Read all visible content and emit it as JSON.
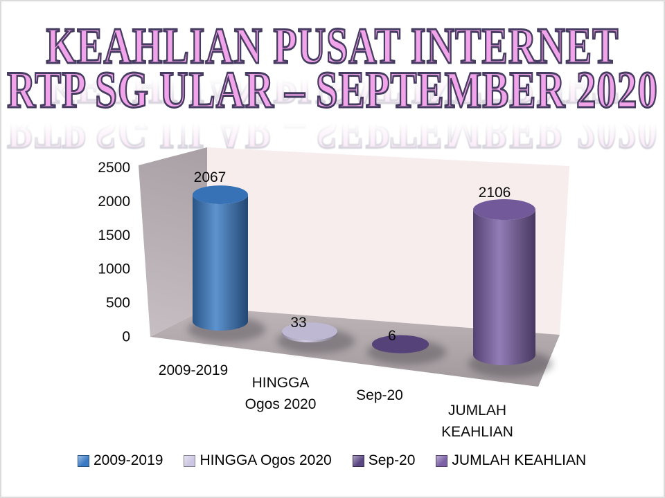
{
  "slide": {
    "title_line1": "KEAHLIAN PUSAT INTERNET",
    "title_line2": "RTP SG ULAR – SEPTEMBER 2020",
    "title_fill_color": "#f2a4ea",
    "title_outline_color": "#463b60"
  },
  "chart_data": {
    "type": "bar",
    "subtype": "3d-cylinder",
    "title": "",
    "xlabel": "",
    "ylabel": "",
    "categories": [
      "2009-2019",
      "HINGGA Ogos 2020",
      "Sep-20",
      "JUMLAH KEAHLIAN"
    ],
    "values": [
      2067,
      33,
      6,
      2106
    ],
    "data_labels": [
      "2067",
      "33",
      "6",
      "2106"
    ],
    "series_colors": [
      "#3b7bc4",
      "#cdc6e2",
      "#5b4781",
      "#7b60a6"
    ],
    "ylim": [
      0,
      2500
    ],
    "yticks": [
      0,
      500,
      1000,
      1500,
      2000,
      2500
    ],
    "grid": false,
    "legend_position": "bottom",
    "legend_entries": [
      "2009-2019",
      "HINGGA Ogos 2020",
      "Sep-20",
      "JUMLAH KEAHLIAN"
    ],
    "xtick_lines": [
      [
        "2009-2019"
      ],
      [
        "HINGGA",
        "Ogos 2020"
      ],
      [
        "Sep-20"
      ],
      [
        "JUMLAH",
        "KEAHLIAN"
      ]
    ]
  }
}
